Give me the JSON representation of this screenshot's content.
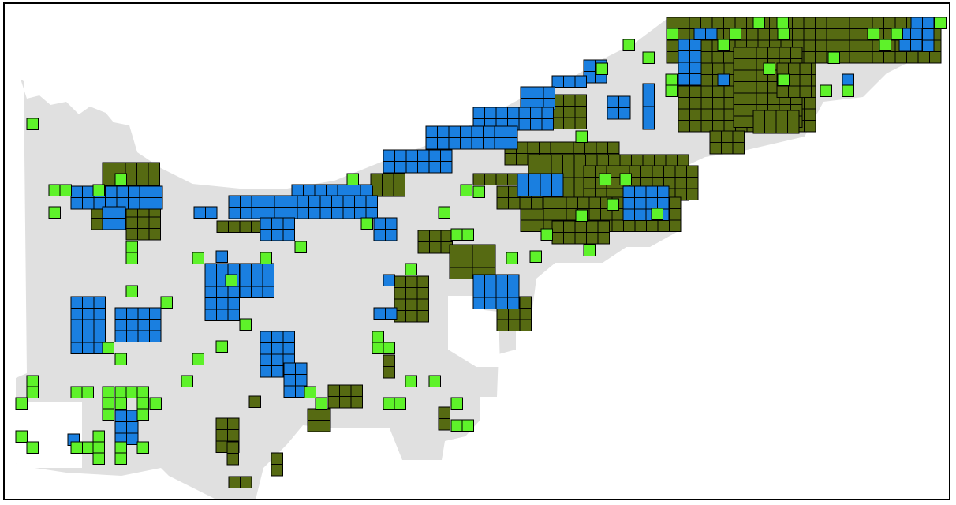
{
  "map": {
    "colors": {
      "background": "#ffffff",
      "region": "#e0e0e0",
      "cell_stroke": "#000000",
      "frame": "#000000",
      "blue": "#1a7fe0",
      "bright_green": "#5ef22a",
      "dark_green": "#566a12"
    }
  }
}
